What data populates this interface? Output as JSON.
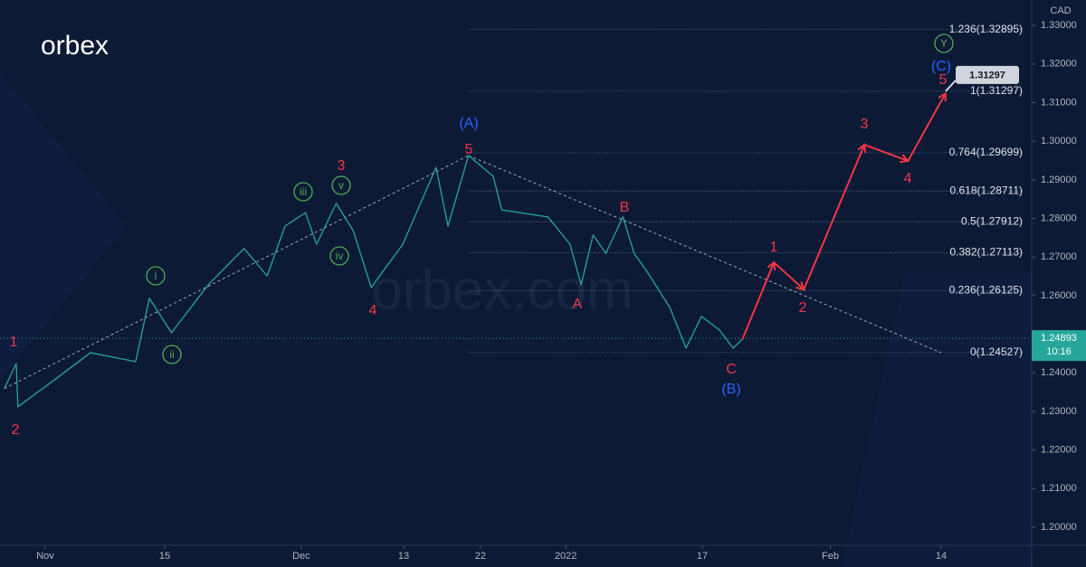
{
  "chart_data": {
    "type": "line",
    "logo": "orbex",
    "watermark": "orbex.com",
    "currency": "CAD",
    "xlim": [
      -5.3,
      115.6
    ],
    "ylim": [
      1.1953,
      1.3366
    ],
    "xticks": [
      {
        "value": 0,
        "label": "Nov"
      },
      {
        "value": 14,
        "label": "15"
      },
      {
        "value": 30,
        "label": "Dec"
      },
      {
        "value": 42,
        "label": "13"
      },
      {
        "value": 51,
        "label": "22"
      },
      {
        "value": 61,
        "label": "2022"
      },
      {
        "value": 77,
        "label": "17"
      },
      {
        "value": 92,
        "label": "Feb"
      },
      {
        "value": 105,
        "label": "14"
      }
    ],
    "yticks": [
      {
        "value": 1.2,
        "label": "1.20000"
      },
      {
        "value": 1.21,
        "label": "1.21000"
      },
      {
        "value": 1.22,
        "label": "1.22000"
      },
      {
        "value": 1.23,
        "label": "1.23000"
      },
      {
        "value": 1.24,
        "label": "1.24000"
      },
      {
        "value": 1.25,
        "label": "1.25000"
      },
      {
        "value": 1.26,
        "label": "1.26000"
      },
      {
        "value": 1.27,
        "label": "1.27000"
      },
      {
        "value": 1.28,
        "label": "1.28000"
      },
      {
        "value": 1.29,
        "label": "1.29000"
      },
      {
        "value": 1.3,
        "label": "1.30000"
      },
      {
        "value": 1.31,
        "label": "1.31000"
      },
      {
        "value": 1.32,
        "label": "1.32000"
      },
      {
        "value": 1.33,
        "label": "1.33000"
      }
    ],
    "series": [
      {
        "color": "#26a69a",
        "x": [
          -4.8,
          -3.4,
          -3.2,
          1.1,
          5.3,
          10.6,
          12.2,
          14.8,
          19.1,
          23.3,
          26,
          28.1,
          30.5,
          31.8,
          34.1,
          36.1,
          38.2,
          41.9,
          45.8,
          47.2,
          49.6,
          52.5,
          53.5,
          58.9,
          61.5,
          62.8,
          64.2,
          65.7,
          67.7,
          69,
          70.5,
          73.2,
          75.1,
          76.9,
          79,
          80.6,
          81.7
        ],
        "values": [
          1.2359,
          1.2424,
          1.2312,
          1.2382,
          1.2452,
          1.2429,
          1.2593,
          1.2504,
          1.2628,
          1.2722,
          1.2651,
          1.278,
          1.2815,
          1.2733,
          1.2839,
          1.2768,
          1.2621,
          1.2733,
          1.2932,
          1.278,
          1.2963,
          1.2909,
          1.2822,
          1.2804,
          1.2733,
          1.2628,
          1.2757,
          1.271,
          1.2804,
          1.271,
          1.2663,
          1.2569,
          1.2464,
          1.2546,
          1.2511,
          1.2464,
          1.2487
        ]
      },
      {
        "color": "#f23645",
        "x": [
          81.7,
          85.4,
          88.9,
          96,
          101.1,
          105.5
        ],
        "values": [
          1.2487,
          1.2686,
          1.2616,
          1.2991,
          1.2949,
          1.3124
        ]
      }
    ],
    "fib_levels": [
      {
        "label": "1.236(1.32895)",
        "value": 1.32895
      },
      {
        "label": "1(1.31297)",
        "value": 1.31297
      },
      {
        "label": "0.764(1.29699)",
        "value": 1.29699
      },
      {
        "label": "0.618(1.28711)",
        "value": 1.28711
      },
      {
        "label": "0.5(1.27912)",
        "value": 1.27912
      },
      {
        "label": "0.382(1.27113)",
        "value": 1.27113
      },
      {
        "label": "0.236(1.26125)",
        "value": 1.26125
      },
      {
        "label": "0(1.24527)",
        "value": 1.24527
      }
    ],
    "last_price": {
      "value": 1.24893,
      "time": "10:16",
      "color": "#26a69a"
    },
    "target_tag": 1.31297,
    "annotations": [
      {
        "text": "1",
        "color": "#f23645"
      },
      {
        "text": "2",
        "color": "#f23645"
      },
      {
        "text": "i",
        "color": "#4caf50",
        "circled": true
      },
      {
        "text": "ii",
        "color": "#4caf50",
        "circled": true
      },
      {
        "text": "iii",
        "color": "#4caf50",
        "circled": true
      },
      {
        "text": "v",
        "color": "#4caf50",
        "circled": true
      },
      {
        "text": "3",
        "color": "#f23645"
      },
      {
        "text": "iv",
        "color": "#4caf50",
        "circled": true
      },
      {
        "text": "4",
        "color": "#f23645"
      },
      {
        "text": "(A)",
        "color": "#2962ff"
      },
      {
        "text": "5",
        "color": "#f23645"
      },
      {
        "text": "A",
        "color": "#f23645"
      },
      {
        "text": "B",
        "color": "#f23645"
      },
      {
        "text": "C",
        "color": "#f23645"
      },
      {
        "text": "(B)",
        "color": "#2962ff"
      },
      {
        "text": "1",
        "color": "#f23645"
      },
      {
        "text": "2",
        "color": "#f23645"
      },
      {
        "text": "3",
        "color": "#f23645"
      },
      {
        "text": "4",
        "color": "#f23645"
      },
      {
        "text": "5",
        "color": "#f23645"
      },
      {
        "text": "(C)",
        "color": "#2962ff"
      },
      {
        "text": "Y",
        "color": "#4caf50",
        "circled": true
      }
    ]
  }
}
